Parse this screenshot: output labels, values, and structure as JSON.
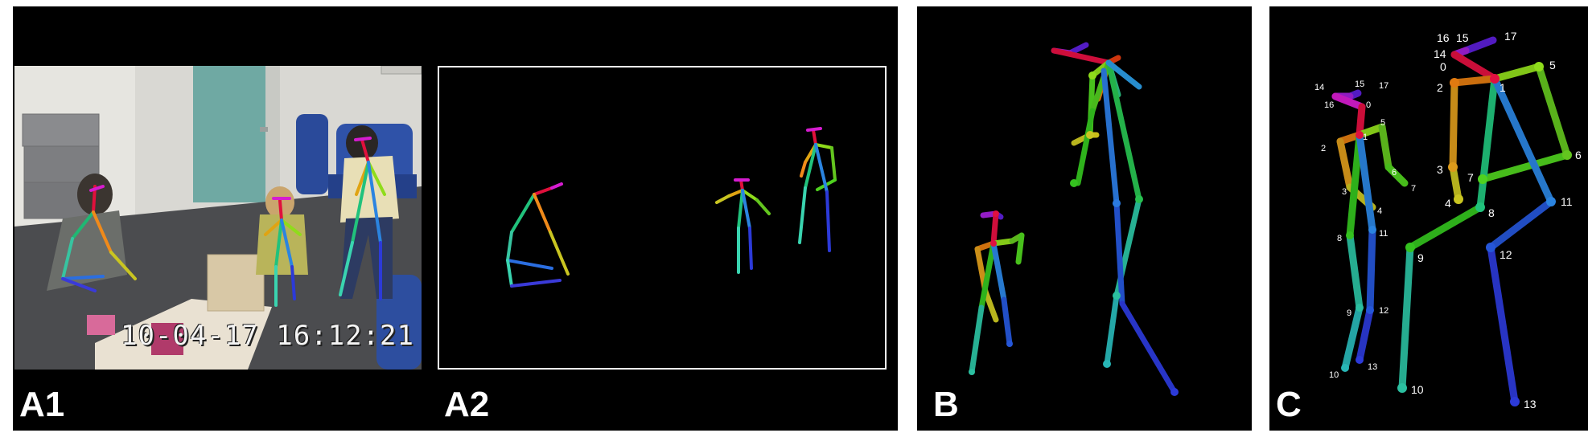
{
  "panels": {
    "a1": {
      "label": "A1",
      "timestamp": "10-04-17 16:12:21"
    },
    "a2": {
      "label": "A2"
    },
    "b": {
      "label": "B"
    },
    "c": {
      "label": "C"
    }
  },
  "keypoint_labels": {
    "right_skeleton": [
      "16",
      "15",
      "17",
      "14",
      "0",
      "2",
      "1",
      "5",
      "3",
      "4",
      "7",
      "8",
      "6",
      "11",
      "9",
      "12",
      "10",
      "13"
    ],
    "left_skeleton": [
      "14",
      "15",
      "17",
      "16",
      "0",
      "5",
      "1",
      "2",
      "6",
      "3",
      "7",
      "4",
      "11",
      "8",
      "9",
      "12",
      "10",
      "13"
    ]
  },
  "colors": {
    "background": "#000000",
    "label_text": "#ffffff",
    "frame": "#ffffff"
  }
}
